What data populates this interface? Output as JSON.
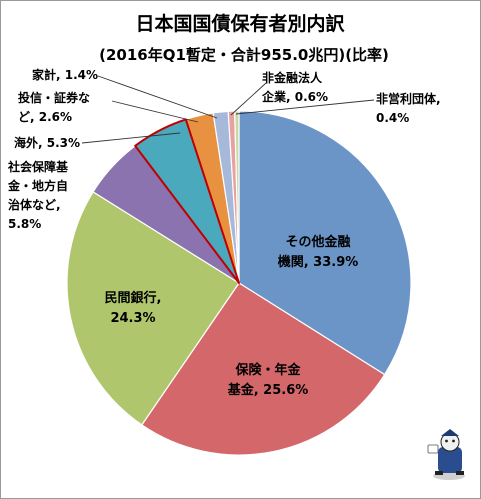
{
  "chart_data": {
    "type": "pie",
    "title": "日本国国債保有者別内訳",
    "subtitle": "(2016年Q1暫定・合計955.0兆円)(比率)",
    "start_angle_deg": 0,
    "direction": "clockwise",
    "slices": [
      {
        "label": [
          "その他金融",
          "機関, 33.9%"
        ],
        "value": 33.9,
        "color": "#6b95c7"
      },
      {
        "label": [
          "保険・年金",
          "基金, 25.6%"
        ],
        "value": 25.6,
        "color": "#d4676a"
      },
      {
        "label": [
          "民間銀行,",
          "24.3%"
        ],
        "value": 24.3,
        "color": "#b0c66d"
      },
      {
        "label": [
          "社会保障基",
          "金・地方自",
          "治体など,",
          "5.8%"
        ],
        "value": 5.8,
        "color": "#8a73ae"
      },
      {
        "label": [
          "海外, 5.3%"
        ],
        "value": 5.3,
        "color": "#4ba9bd",
        "highlight": true,
        "highlight_color": "#c00000"
      },
      {
        "label": [
          "投信・証券な",
          "ど, 2.6%"
        ],
        "value": 2.6,
        "color": "#e89140"
      },
      {
        "label": [
          "家計, 1.4%"
        ],
        "value": 1.4,
        "color": "#a6b9da"
      },
      {
        "label": [
          "非金融法人",
          "企業, 0.6%"
        ],
        "value": 0.6,
        "color": "#e8a0a0"
      },
      {
        "label": [
          "非営利団体,",
          "0.4%"
        ],
        "value": 0.4,
        "color": "#c9d9a6"
      }
    ]
  }
}
